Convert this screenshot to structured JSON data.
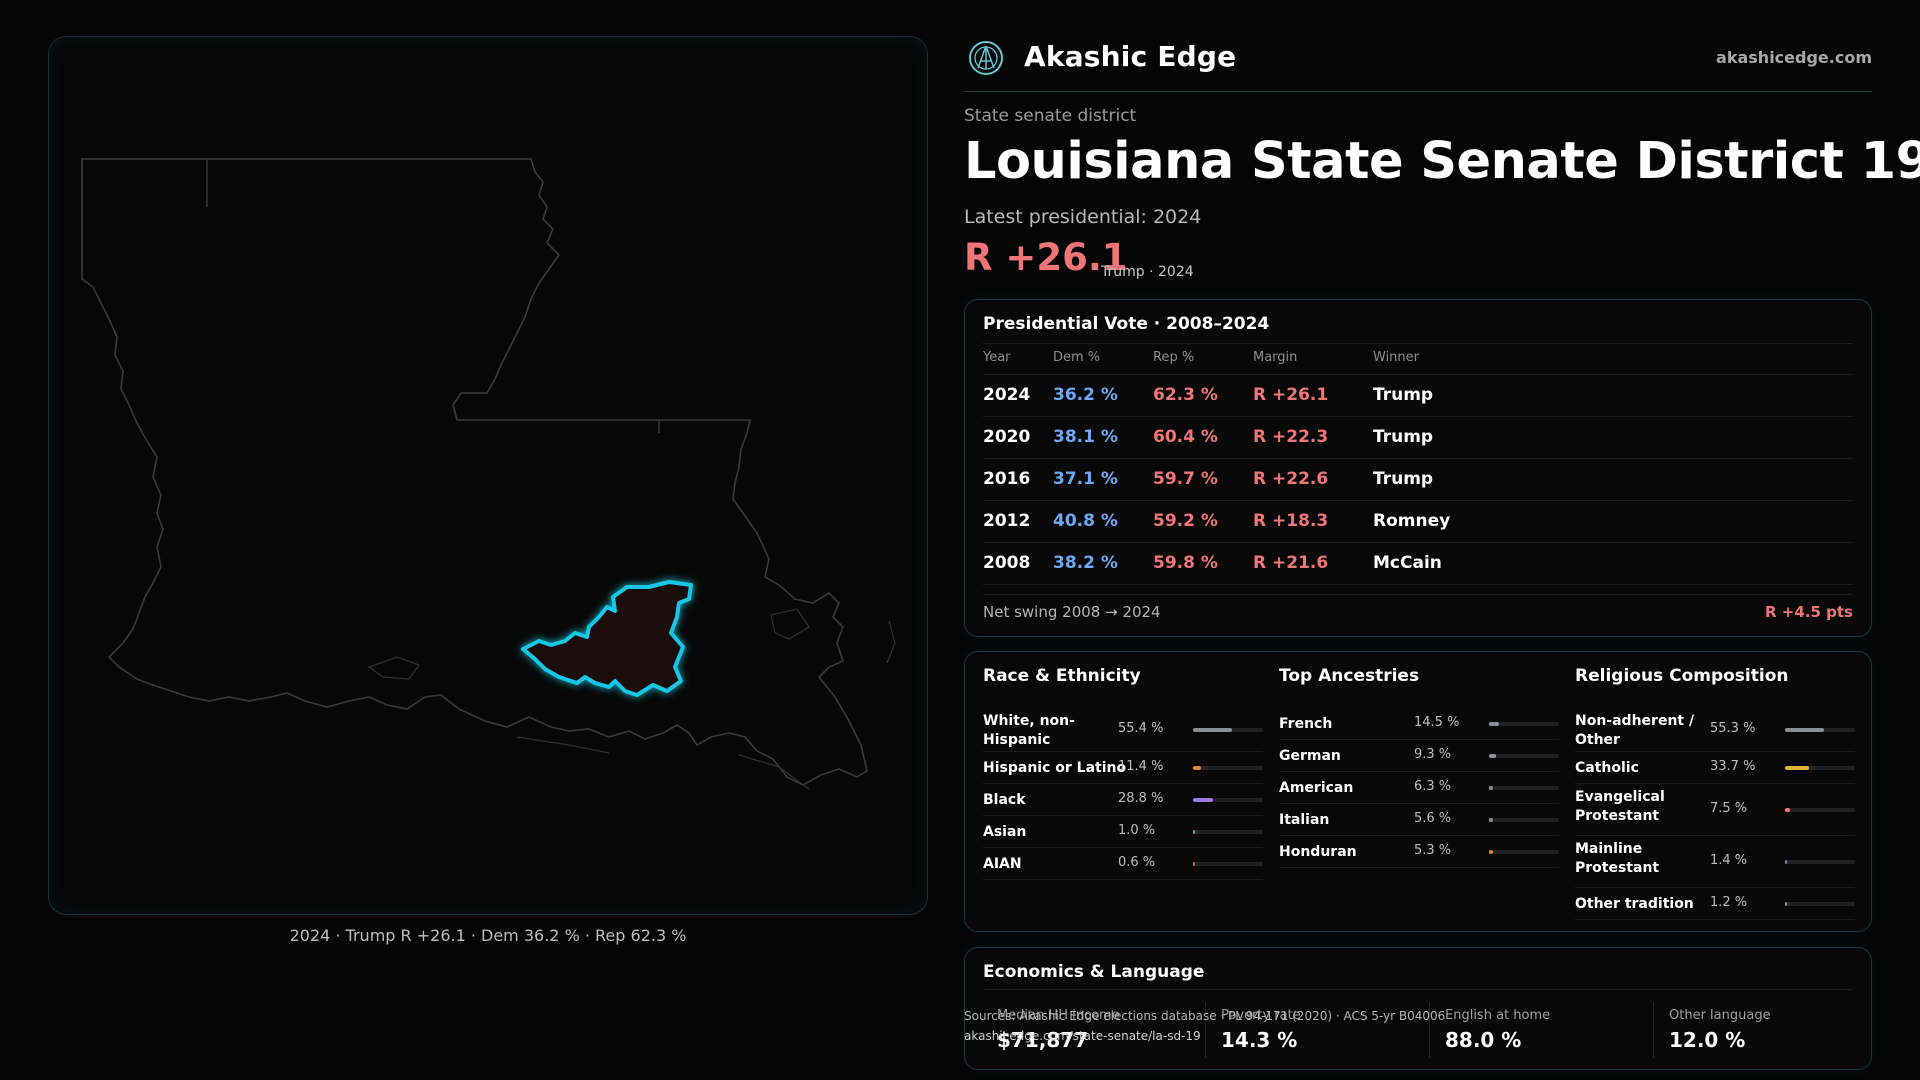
{
  "map": {
    "caption": "2024 · Trump R +26.1 · Dem 36.2 % · Rep 62.3 %"
  },
  "header": {
    "brand": "Akashic Edge",
    "site": "akashicedge.com",
    "logo_icon": "akashic-logo-icon"
  },
  "district": {
    "kind": "State senate district",
    "title": "Louisiana State Senate District 19",
    "latest_label": "Latest presidential: 2024",
    "margin": "R +26.1",
    "margin_sub": "Trump · 2024"
  },
  "presidential": {
    "title": "Presidential Vote · 2008–2024",
    "columns": [
      "Year",
      "Dem %",
      "Rep %",
      "Margin",
      "Winner"
    ],
    "rows": [
      {
        "year": "2024",
        "dem": "36.2 %",
        "rep": "62.3 %",
        "margin": "R +26.1",
        "winner": "Trump"
      },
      {
        "year": "2020",
        "dem": "38.1 %",
        "rep": "60.4 %",
        "margin": "R +22.3",
        "winner": "Trump"
      },
      {
        "year": "2016",
        "dem": "37.1 %",
        "rep": "59.7 %",
        "margin": "R +22.6",
        "winner": "Trump"
      },
      {
        "year": "2012",
        "dem": "40.8 %",
        "rep": "59.2 %",
        "margin": "R +18.3",
        "winner": "Romney"
      },
      {
        "year": "2008",
        "dem": "38.2 %",
        "rep": "59.8 %",
        "margin": "R +21.6",
        "winner": "McCain"
      }
    ],
    "swing_label": "Net swing 2008 → 2024",
    "swing_value": "R +4.5 pts"
  },
  "race": {
    "title": "Race & Ethnicity",
    "items": [
      {
        "label": "White, non-\nHispanic",
        "value": "55.4 %",
        "pct": 55.4,
        "color": "#8a8f9a"
      },
      {
        "label": "Hispanic or Latino",
        "value": "11.4 %",
        "pct": 11.4,
        "color": "#e08a2c"
      },
      {
        "label": "Black",
        "value": "28.8 %",
        "pct": 28.8,
        "color": "#9a7ae0"
      },
      {
        "label": "Asian",
        "value": "1.0 %",
        "pct": 1.0,
        "color": "#3fb98a"
      },
      {
        "label": "AIAN",
        "value": "0.6 %",
        "pct": 0.6,
        "color": "#d0603a"
      }
    ]
  },
  "ancestry": {
    "title": "Top Ancestries",
    "items": [
      {
        "label": "French",
        "value": "14.5 %",
        "pct": 14.5,
        "color": "#8a8f9a"
      },
      {
        "label": "German",
        "value": "9.3 %",
        "pct": 9.3,
        "color": "#8a8f9a"
      },
      {
        "label": "American",
        "value": "6.3 %",
        "pct": 6.3,
        "color": "#8a8f9a"
      },
      {
        "label": "Italian",
        "value": "5.6 %",
        "pct": 5.6,
        "color": "#8a8f9a"
      },
      {
        "label": "Honduran",
        "value": "5.3 %",
        "pct": 5.3,
        "color": "#e08a2c"
      }
    ]
  },
  "religion": {
    "title": "Religious Composition",
    "items": [
      {
        "label": "Non-adherent /\nOther",
        "value": "55.3 %",
        "pct": 55.3,
        "color": "#8a8f9a"
      },
      {
        "label": "Catholic",
        "value": "33.7 %",
        "pct": 33.7,
        "color": "#e0b030"
      },
      {
        "label": "Evangelical\nProtestant",
        "value": "7.5 %",
        "pct": 7.5,
        "color": "#f07575"
      },
      {
        "label": "Mainline\nProtestant",
        "value": "1.4 %",
        "pct": 1.4,
        "color": "#7a7ad0"
      },
      {
        "label": "Other tradition",
        "value": "1.2 %",
        "pct": 1.2,
        "color": "#8a8f9a"
      }
    ]
  },
  "economics": {
    "title": "Economics & Language",
    "stats": [
      {
        "label": "Median HH income",
        "value": "$71,877"
      },
      {
        "label": "Poverty rate",
        "value": "14.3 %"
      },
      {
        "label": "English at home",
        "value": "88.0 %"
      },
      {
        "label": "Other language",
        "value": "12.0 %"
      }
    ]
  },
  "source": {
    "line1": "Sources: Akashic Edge elections database · PL 94-171 (2020) · ACS 5-yr B04006",
    "line2": "akashicedge.com/state-senate/la-sd-19"
  }
}
